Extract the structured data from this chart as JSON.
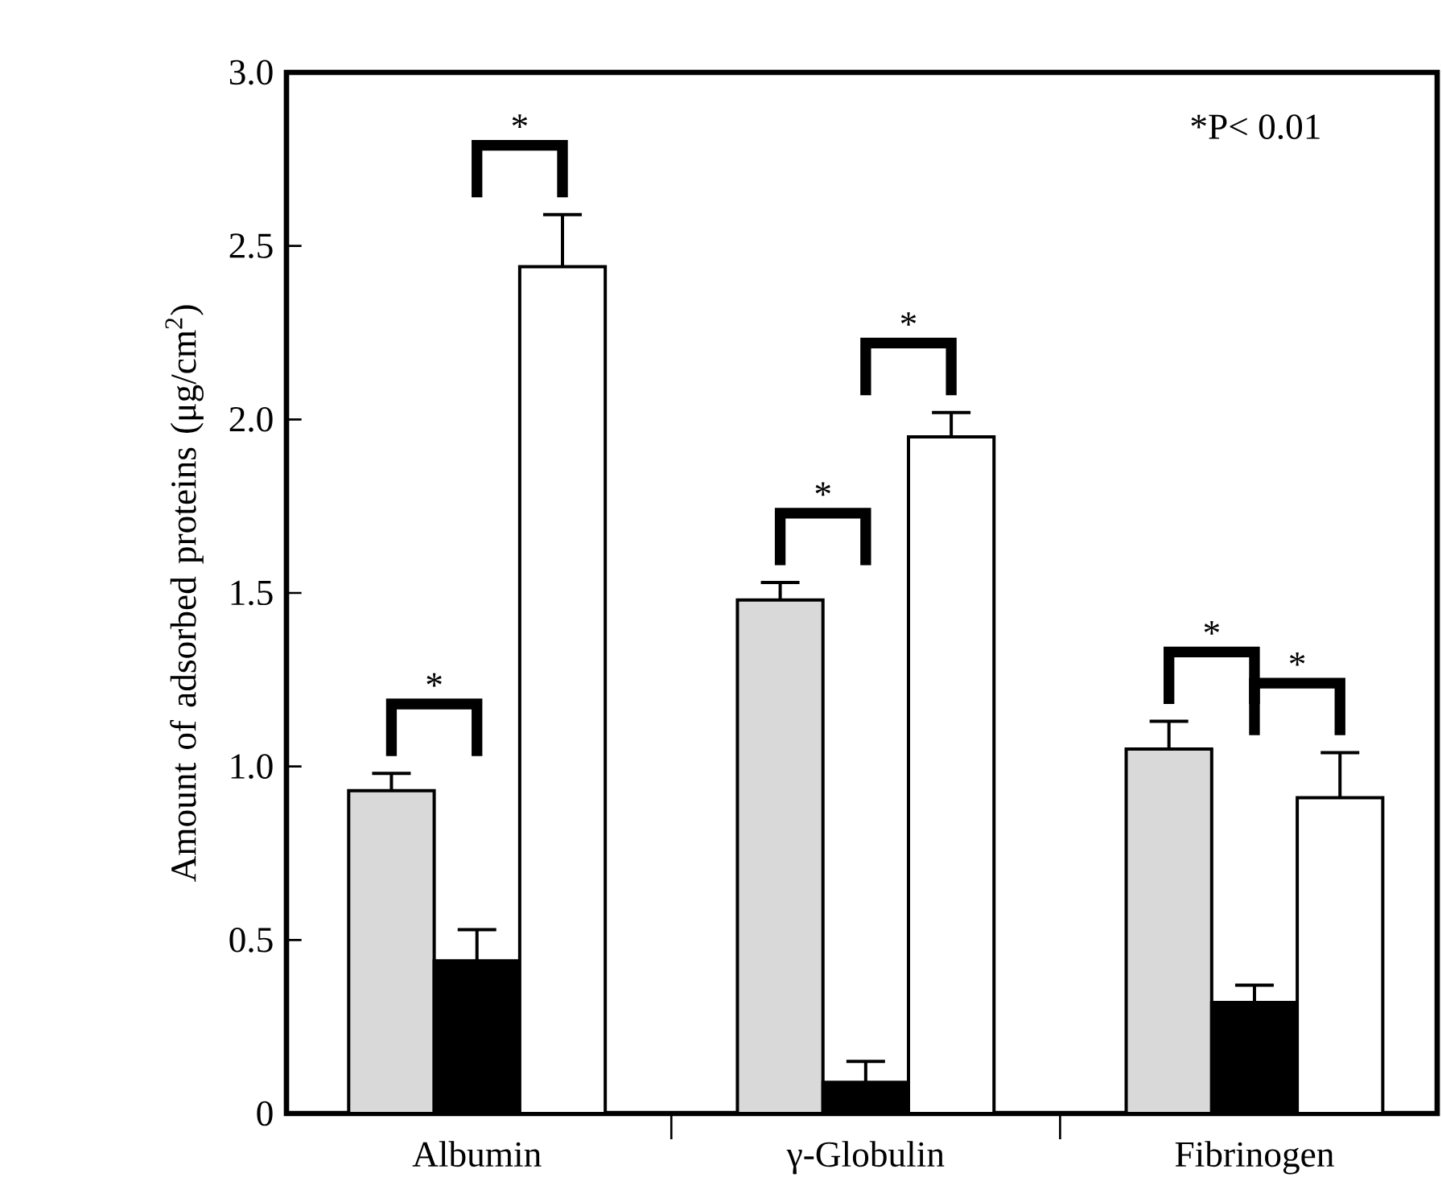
{
  "chart_data": {
    "type": "bar",
    "ylabel": "Amount of adsorbed proteins (μg/cm$^{2}$)",
    "categories": [
      "Albumin",
      "γ-Globulin",
      "Fibrinogen"
    ],
    "series": [
      {
        "color": "#d9d9d9",
        "values": [
          0.93,
          1.48,
          1.05
        ],
        "errors": [
          0.05,
          0.05,
          0.08
        ]
      },
      {
        "color": "#000000",
        "values": [
          0.44,
          0.09,
          0.32
        ],
        "errors": [
          0.09,
          0.06,
          0.05
        ]
      },
      {
        "color": "#ffffff",
        "values": [
          2.44,
          1.95,
          0.91
        ],
        "errors": [
          0.15,
          0.07,
          0.13
        ]
      }
    ],
    "ylim": [
      0,
      3.0
    ],
    "yticks": [
      0,
      {
        "value": 0.5,
        "label": "0.5"
      },
      {
        "value": 1,
        "label": "1.0"
      },
      {
        "value": 1.5,
        "label": "1.5"
      },
      {
        "value": 2,
        "label": "2.0"
      },
      {
        "value": 2.5,
        "label": "2.5"
      },
      {
        "value": 3,
        "label": "3.0"
      }
    ],
    "grid": false,
    "annotations": [
      "*P< 0.01",
      "*",
      "*",
      "*",
      "*",
      "*",
      "*"
    ]
  }
}
